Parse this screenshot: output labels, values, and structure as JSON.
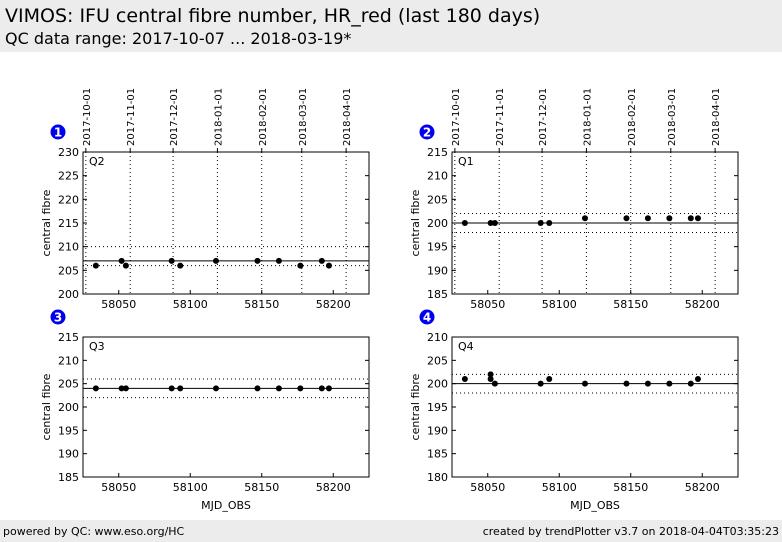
{
  "header": {
    "title": "VIMOS: IFU central fibre number, HR_red (last 180 days)",
    "subtitle": "QC data range: 2017-10-07 ... 2018-03-19*"
  },
  "footer": {
    "left": "powered by QC: www.eso.org/HC",
    "right": "created by trendPlotter v3.7 on 2018-04-04T03:35:23"
  },
  "colors": {
    "background": "#ffffff",
    "bars": "#ececec",
    "markers": "#000000",
    "badge": "#0000ee"
  },
  "chart_data": [
    {
      "type": "scatter",
      "panel_number": "1",
      "label": "Q2",
      "xlabel": "",
      "ylabel": "central fibre",
      "xlim": [
        58025,
        58225
      ],
      "ylim": [
        200,
        230
      ],
      "yticks": [
        200,
        205,
        210,
        215,
        220,
        225,
        230
      ],
      "xticks": [
        58050,
        58100,
        58150,
        58200
      ],
      "xticklabels": [
        "58050",
        "58100",
        "58150",
        "58200"
      ],
      "date_ticks": [
        "2017-10-01",
        "2017-11-01",
        "2017-12-01",
        "2018-01-01",
        "2018-02-01",
        "2018-03-01",
        "2018-04-01"
      ],
      "date_tick_mjd": [
        58027,
        58058,
        58088,
        58119,
        58150,
        58178,
        58209
      ],
      "mean": 207,
      "band": [
        206,
        210
      ],
      "points": {
        "x": [
          58034,
          58052,
          58055,
          58087,
          58093,
          58118,
          58147,
          58162,
          58177,
          58192,
          58197
        ],
        "y": [
          206,
          207,
          206,
          207,
          206,
          207,
          207,
          207,
          206,
          207,
          206
        ]
      }
    },
    {
      "type": "scatter",
      "panel_number": "2",
      "label": "Q1",
      "xlabel": "",
      "ylabel": "central fibre",
      "xlim": [
        58025,
        58225
      ],
      "ylim": [
        185,
        215
      ],
      "yticks": [
        185,
        190,
        195,
        200,
        205,
        210,
        215
      ],
      "xticks": [
        58050,
        58100,
        58150,
        58200
      ],
      "xticklabels": [
        "58050",
        "58100",
        "58150",
        "58200"
      ],
      "date_ticks": [
        "2017-10-01",
        "2017-11-01",
        "2017-12-01",
        "2018-01-01",
        "2018-02-01",
        "2018-03-01",
        "2018-04-01"
      ],
      "date_tick_mjd": [
        58027,
        58058,
        58088,
        58119,
        58150,
        58178,
        58209
      ],
      "mean": 200,
      "band": [
        198,
        202
      ],
      "points": {
        "x": [
          58034,
          58052,
          58055,
          58087,
          58093,
          58118,
          58147,
          58162,
          58177,
          58192,
          58197
        ],
        "y": [
          200,
          200,
          200,
          200,
          200,
          201,
          201,
          201,
          201,
          201,
          201
        ]
      }
    },
    {
      "type": "scatter",
      "panel_number": "3",
      "label": "Q3",
      "xlabel": "MJD_OBS",
      "ylabel": "central fibre",
      "xlim": [
        58025,
        58225
      ],
      "ylim": [
        185,
        215
      ],
      "yticks": [
        185,
        190,
        195,
        200,
        205,
        210,
        215
      ],
      "xticks": [
        58050,
        58100,
        58150,
        58200
      ],
      "xticklabels": [
        "58050",
        "58100",
        "58150",
        "58200"
      ],
      "date_ticks": [],
      "date_tick_mjd": [],
      "mean": 204,
      "band": [
        202,
        206
      ],
      "points": {
        "x": [
          58034,
          58052,
          58055,
          58087,
          58093,
          58118,
          58147,
          58162,
          58177,
          58192,
          58197
        ],
        "y": [
          204,
          204,
          204,
          204,
          204,
          204,
          204,
          204,
          204,
          204,
          204
        ]
      }
    },
    {
      "type": "scatter",
      "panel_number": "4",
      "label": "Q4",
      "xlabel": "MJD_OBS",
      "ylabel": "central fibre",
      "xlim": [
        58025,
        58225
      ],
      "ylim": [
        180,
        210
      ],
      "yticks": [
        180,
        185,
        190,
        195,
        200,
        205,
        210
      ],
      "xticks": [
        58050,
        58100,
        58150,
        58200
      ],
      "xticklabels": [
        "58050",
        "58100",
        "58150",
        "58200"
      ],
      "date_ticks": [],
      "date_tick_mjd": [],
      "mean": 200,
      "band": [
        198,
        202
      ],
      "points": {
        "x": [
          58034,
          58052,
          58052,
          58055,
          58087,
          58093,
          58118,
          58147,
          58162,
          58177,
          58192,
          58197
        ],
        "y": [
          201,
          202,
          201,
          200,
          200,
          201,
          200,
          200,
          200,
          200,
          200,
          201
        ]
      }
    }
  ]
}
